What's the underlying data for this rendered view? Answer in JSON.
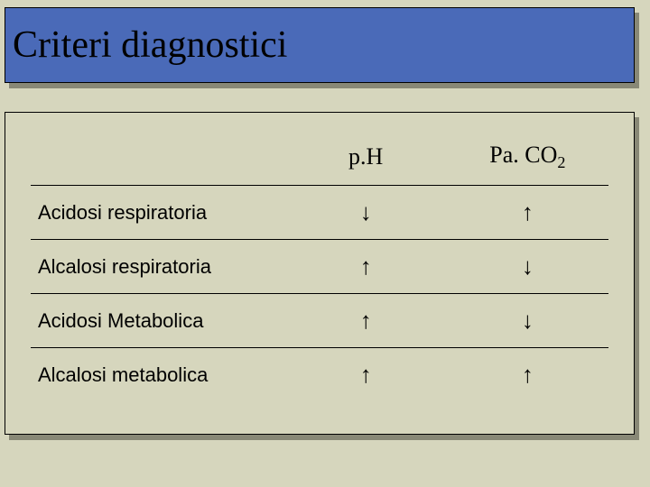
{
  "title": "Criteri diagnostici",
  "colors": {
    "background": "#d6d6bd",
    "title_bar": "#4a6ab8",
    "shadow": "#888876",
    "border": "#000000",
    "text": "#000000"
  },
  "table": {
    "columns": [
      "",
      "p.H",
      "Pa. CO"
    ],
    "col2_sub": "2",
    "rows": [
      {
        "label": "Acidosi respiratoria",
        "ph": "↓",
        "paco2": "↑"
      },
      {
        "label": "Alcalosi respiratoria",
        "ph": "↑",
        "paco2": "↓"
      },
      {
        "label": "Acidosi Metabolica",
        "ph": "↑",
        "paco2": "↓"
      },
      {
        "label": "Alcalosi metabolica",
        "ph": "↑",
        "paco2": "↑"
      }
    ]
  },
  "fonts": {
    "title_size": 42,
    "header_size": 26,
    "row_label_size": 22,
    "arrow_size": 26
  }
}
